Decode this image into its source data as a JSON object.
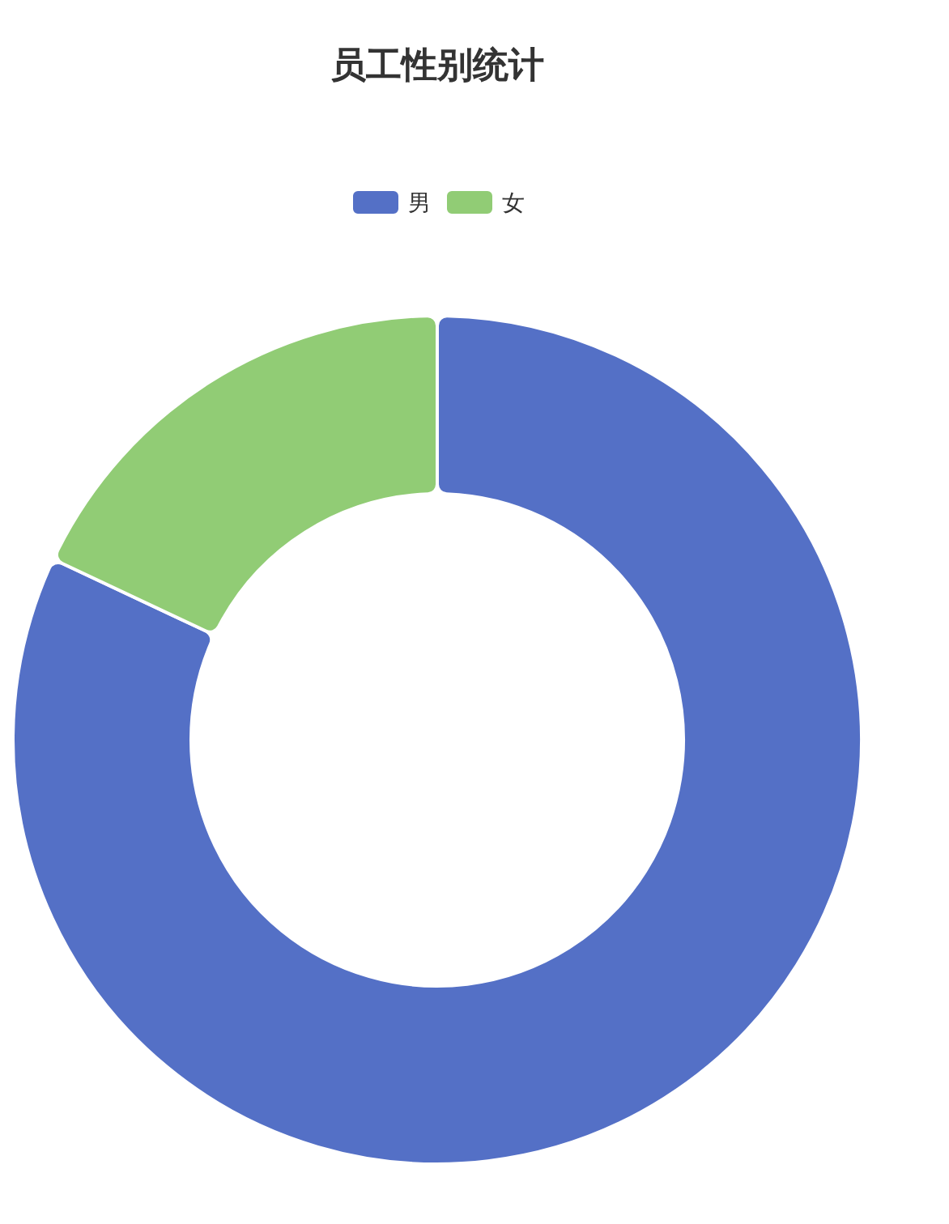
{
  "chart_data": {
    "type": "donut",
    "title": "员工性别统计",
    "categories": [
      "男",
      "女"
    ],
    "values": [
      82,
      18
    ],
    "colors": [
      "#5470c6",
      "#91cc75"
    ],
    "legend": "top"
  }
}
